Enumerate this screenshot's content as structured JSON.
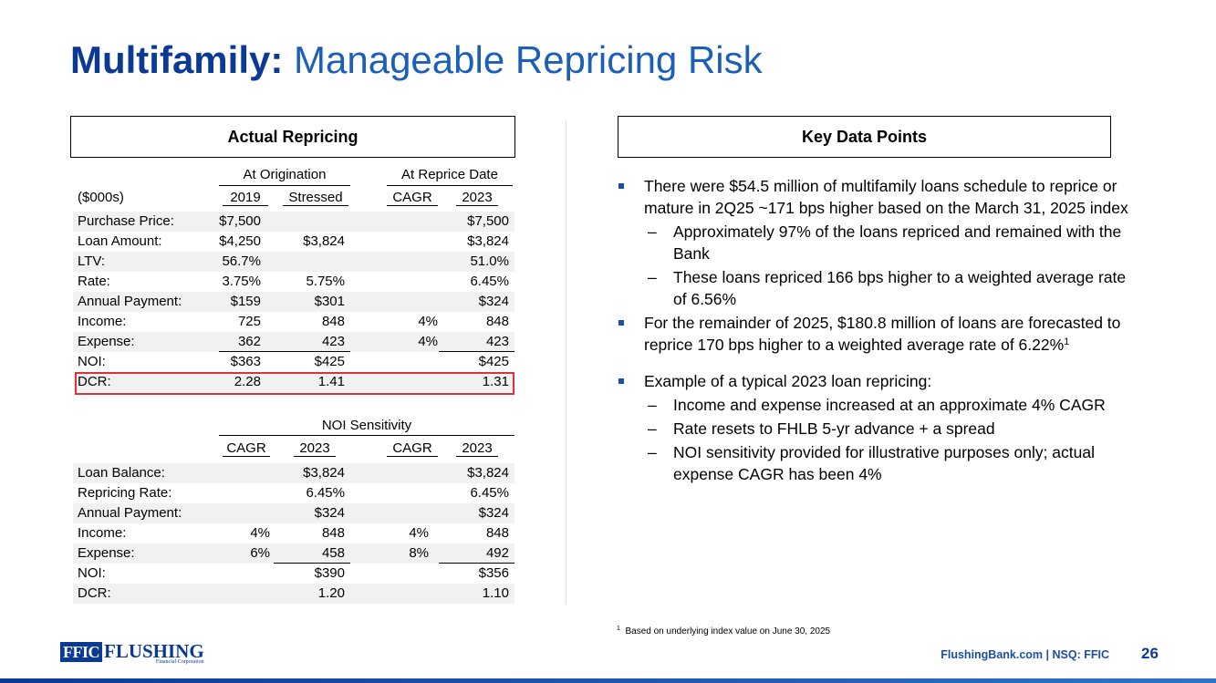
{
  "title": {
    "bold": "Multifamily:",
    "rest": "Manageable Repricing Risk"
  },
  "actual_repricing": {
    "header": "Actual Repricing",
    "group_origination": "At Origination",
    "group_reprice": "At Reprice Date",
    "units_label": "($000s)",
    "col_2019": "2019",
    "col_stressed": "Stressed",
    "col_cagr": "CAGR",
    "col_2023": "2023",
    "rows": [
      {
        "label": "Purchase Price:",
        "c1": "$7,500",
        "c2": "",
        "c3": "",
        "c4": "$7,500"
      },
      {
        "label": "Loan Amount:",
        "c1": "$4,250",
        "c2": "$3,824",
        "c3": "",
        "c4": "$3,824"
      },
      {
        "label": "LTV:",
        "c1": "56.7%",
        "c2": "",
        "c3": "",
        "c4": "51.0%"
      },
      {
        "label": "Rate:",
        "c1": "3.75%",
        "c2": "5.75%",
        "c3": "",
        "c4": "6.45%"
      },
      {
        "label": "Annual Payment:",
        "c1": "$159",
        "c2": "$301",
        "c3": "",
        "c4": "$324"
      },
      {
        "label": "Income:",
        "c1": "725",
        "c2": "848",
        "c3": "4%",
        "c4": "848"
      },
      {
        "label": "Expense:",
        "c1": "362",
        "c2": "423",
        "c3": "4%",
        "c4": "423"
      },
      {
        "label": "NOI:",
        "c1": "$363",
        "c2": "$425",
        "c3": "",
        "c4": "$425"
      },
      {
        "label": "DCR:",
        "c1": "2.28",
        "c2": "1.41",
        "c3": "",
        "c4": "1.31"
      }
    ]
  },
  "noi_sensitivity": {
    "group": "NOI Sensitivity",
    "col_cagr_a": "CAGR",
    "col_2023_a": "2023",
    "col_cagr_b": "CAGR",
    "col_2023_b": "2023",
    "rows": [
      {
        "label": "Loan Balance:",
        "c1": "",
        "c2": "$3,824",
        "c3": "",
        "c4": "$3,824"
      },
      {
        "label": "Repricing Rate:",
        "c1": "",
        "c2": "6.45%",
        "c3": "",
        "c4": "6.45%"
      },
      {
        "label": "Annual Payment:",
        "c1": "",
        "c2": "$324",
        "c3": "",
        "c4": "$324"
      },
      {
        "label": "Income:",
        "c1": "4%",
        "c2": "848",
        "c3": "4%",
        "c4": "848"
      },
      {
        "label": "Expense:",
        "c1": "6%",
        "c2": "458",
        "c3": "8%",
        "c4": "492"
      },
      {
        "label": "NOI:",
        "c1": "",
        "c2": "$390",
        "c3": "",
        "c4": "$356"
      },
      {
        "label": "DCR:",
        "c1": "",
        "c2": "1.20",
        "c3": "",
        "c4": "1.10"
      }
    ]
  },
  "key_data_points": {
    "header": "Key Data Points",
    "b1": "There were $54.5 million of multifamily loans schedule to reprice or mature in 2Q25 ~171 bps higher based on the March 31, 2025 index",
    "b1_s1": "Approximately 97% of the loans repriced and remained with the Bank",
    "b1_s2": "These loans repriced 166 bps higher to a weighted average rate of 6.56%",
    "b2": "For the remainder of 2025, $180.8 million of loans are forecasted to reprice 170 bps higher to a weighted average rate of 6.22%",
    "b2_sup": "1",
    "b3": "Example of a typical 2023 loan repricing:",
    "b3_s1": "Income and expense increased at an approximate 4% CAGR",
    "b3_s2": "Rate resets to FHLB 5-yr advance + a spread",
    "b3_s3": "NOI sensitivity provided for illustrative purposes only; actual expense CAGR has been 4%",
    "dash": "–"
  },
  "footnote": {
    "marker": "1",
    "text": "Based on underlying index value on June 30, 2025"
  },
  "footer": {
    "logo_ffic": "FFIC",
    "logo_name": "FLUSHING",
    "logo_sub": "Financial Corporation",
    "site": "FlushingBank.com  |  NSQ: FFIC",
    "page": "26"
  },
  "colors": {
    "brand_dark": "#0b3a94",
    "brand_light": "#1c5fb8",
    "highlight": "#e0303a"
  }
}
